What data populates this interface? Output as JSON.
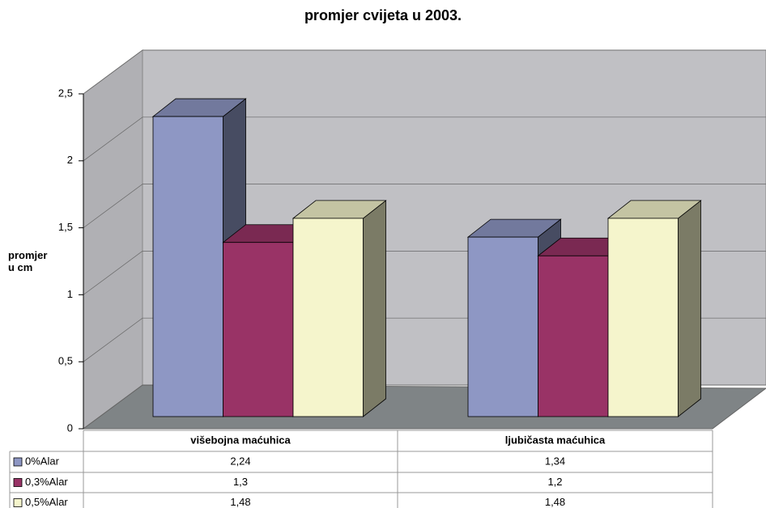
{
  "chart_data": {
    "type": "bar3d",
    "title": "promjer cvijeta u 2003.",
    "y_label": "promjer u cm",
    "categories": [
      "višebojna maćuhica",
      "ljubičasta maćuhica"
    ],
    "series": [
      {
        "name": "0%Alar",
        "color": "#8e97c4",
        "values": [
          2.24,
          1.34
        ],
        "value_labels": [
          "2,24",
          "1,34"
        ]
      },
      {
        "name": "0,3%Alar",
        "color": "#993366",
        "values": [
          1.3,
          1.2
        ],
        "value_labels": [
          "1,3",
          "1,2"
        ]
      },
      {
        "name": "0,5%Alar",
        "color": "#f5f5cc",
        "values": [
          1.48,
          1.48
        ],
        "value_labels": [
          "1,48",
          "1,48"
        ]
      }
    ],
    "ylim": [
      0,
      2.5
    ],
    "yticks": [
      0,
      {
        "value": 0.5,
        "label": "0,5"
      },
      1,
      {
        "value": 1.5,
        "label": "1,5"
      },
      2,
      {
        "value": 2.5,
        "label": "2,5"
      }
    ],
    "grid": true
  }
}
